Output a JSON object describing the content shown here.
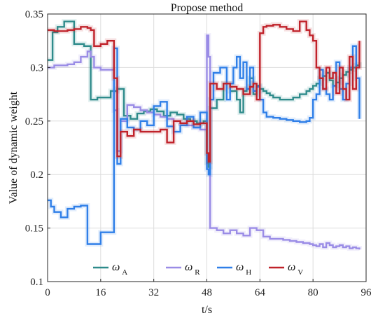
{
  "chart_data": {
    "type": "line",
    "title": "Propose method",
    "xlabel": "t/s",
    "ylabel": "Value of dynamic weight",
    "xlim": [
      0,
      96
    ],
    "ylim": [
      0.1,
      0.35
    ],
    "x_ticks": [
      "0",
      "16",
      "32",
      "48",
      "64",
      "80",
      "96"
    ],
    "y_ticks": [
      "0.1",
      "0.15",
      "0.2",
      "0.25",
      "0.3",
      "0.35"
    ],
    "grid": true,
    "legend_position": "bottom",
    "step": true,
    "series": [
      {
        "name": "ω_A",
        "color": "#2e8b8b",
        "x": [
          0,
          1.5,
          3,
          5,
          8,
          11,
          13,
          13.5,
          15,
          17,
          19,
          21,
          22,
          23,
          25,
          27,
          29,
          31,
          33,
          35,
          37,
          39,
          41,
          43,
          45,
          47,
          48,
          48.5,
          49,
          51,
          53,
          55,
          57,
          58,
          59,
          60,
          61,
          62,
          63,
          64,
          65,
          66,
          67,
          68,
          70,
          72,
          74,
          76,
          78,
          79,
          80,
          81,
          82,
          83,
          84,
          85,
          86,
          87,
          88,
          89,
          90,
          91,
          92,
          93,
          94
        ],
        "y": [
          0.307,
          0.333,
          0.338,
          0.343,
          0.322,
          0.32,
          0.27,
          0.27,
          0.272,
          0.272,
          0.278,
          0.28,
          0.28,
          0.255,
          0.252,
          0.257,
          0.259,
          0.261,
          0.259,
          0.255,
          0.258,
          0.256,
          0.252,
          0.25,
          0.248,
          0.25,
          0.211,
          0.207,
          0.262,
          0.27,
          0.285,
          0.278,
          0.27,
          0.258,
          0.278,
          0.28,
          0.29,
          0.275,
          0.283,
          0.28,
          0.278,
          0.276,
          0.274,
          0.272,
          0.27,
          0.27,
          0.272,
          0.275,
          0.278,
          0.28,
          0.283,
          0.285,
          0.29,
          0.292,
          0.295,
          0.288,
          0.283,
          0.286,
          0.29,
          0.293,
          0.296,
          0.298,
          0.3,
          0.302,
          0.305
        ]
      },
      {
        "name": "ω_R",
        "color": "#9a8ce6",
        "x": [
          0,
          2,
          4,
          6,
          8,
          10,
          12,
          13,
          14,
          16,
          18,
          20,
          21,
          22,
          24,
          26,
          28,
          30,
          32,
          34,
          36,
          38,
          40,
          42,
          44,
          46,
          48,
          48.5,
          49,
          51,
          53,
          55,
          57,
          59,
          61,
          63,
          65,
          67,
          69,
          71,
          73,
          75,
          77,
          79,
          80,
          81,
          82,
          83,
          84,
          85,
          86,
          87,
          88,
          89,
          90,
          91,
          92,
          93,
          94
        ],
        "y": [
          0.3,
          0.302,
          0.302,
          0.303,
          0.305,
          0.31,
          0.315,
          0.31,
          0.3,
          0.298,
          0.298,
          0.26,
          0.222,
          0.25,
          0.265,
          0.263,
          0.26,
          0.258,
          0.256,
          0.254,
          0.252,
          0.25,
          0.248,
          0.246,
          0.244,
          0.242,
          0.33,
          0.31,
          0.15,
          0.148,
          0.145,
          0.148,
          0.145,
          0.143,
          0.15,
          0.148,
          0.142,
          0.14,
          0.14,
          0.139,
          0.138,
          0.137,
          0.136,
          0.135,
          0.134,
          0.133,
          0.135,
          0.132,
          0.136,
          0.134,
          0.132,
          0.133,
          0.134,
          0.132,
          0.133,
          0.131,
          0.132,
          0.131,
          0.13
        ]
      },
      {
        "name": "ω_H",
        "color": "#2f7fe8",
        "x": [
          0,
          1,
          2,
          4,
          6,
          8,
          10,
          12,
          13.5,
          14,
          16,
          18,
          20,
          21,
          22,
          24,
          26,
          28,
          30,
          32,
          34,
          36,
          38,
          40,
          42,
          44,
          46,
          48,
          48.5,
          49,
          50,
          52,
          53,
          54,
          55,
          56,
          57,
          58,
          59,
          60,
          61,
          62,
          63,
          64,
          65,
          66,
          68,
          70,
          72,
          74,
          76,
          78,
          79,
          80,
          81,
          82,
          83,
          84,
          85,
          86,
          87,
          88,
          89,
          90,
          91,
          92,
          93,
          94
        ],
        "y": [
          0.176,
          0.17,
          0.165,
          0.16,
          0.168,
          0.17,
          0.171,
          0.135,
          0.135,
          0.135,
          0.146,
          0.146,
          0.318,
          0.21,
          0.252,
          0.244,
          0.242,
          0.25,
          0.246,
          0.264,
          0.268,
          0.245,
          0.24,
          0.246,
          0.254,
          0.244,
          0.258,
          0.205,
          0.2,
          0.27,
          0.295,
          0.3,
          0.3,
          0.27,
          0.285,
          0.3,
          0.31,
          0.29,
          0.305,
          0.28,
          0.3,
          0.278,
          0.282,
          0.27,
          0.258,
          0.254,
          0.253,
          0.252,
          0.251,
          0.25,
          0.249,
          0.25,
          0.253,
          0.27,
          0.275,
          0.298,
          0.28,
          0.275,
          0.27,
          0.283,
          0.305,
          0.28,
          0.27,
          0.285,
          0.3,
          0.32,
          0.29,
          0.252
        ]
      },
      {
        "name": "ω_V",
        "color": "#c0222a",
        "x": [
          0,
          2,
          4,
          6,
          8,
          10,
          12,
          13,
          14,
          16,
          18,
          20,
          21,
          22,
          24,
          26,
          28,
          30,
          32,
          34,
          36,
          38,
          40,
          42,
          44,
          46,
          48,
          48.5,
          49,
          51,
          53,
          55,
          57,
          59,
          61,
          62,
          63,
          64,
          65,
          66,
          68,
          70,
          72,
          74,
          76,
          78,
          79,
          80,
          81,
          82,
          83,
          84,
          85,
          86,
          87,
          88,
          89,
          90,
          91,
          92,
          93,
          94
        ],
        "y": [
          0.335,
          0.334,
          0.334,
          0.335,
          0.336,
          0.338,
          0.337,
          0.335,
          0.32,
          0.322,
          0.325,
          0.29,
          0.217,
          0.24,
          0.236,
          0.242,
          0.24,
          0.24,
          0.24,
          0.242,
          0.23,
          0.25,
          0.248,
          0.25,
          0.247,
          0.248,
          0.22,
          0.212,
          0.285,
          0.28,
          0.285,
          0.282,
          0.28,
          0.275,
          0.282,
          0.285,
          0.27,
          0.332,
          0.338,
          0.339,
          0.34,
          0.338,
          0.336,
          0.334,
          0.343,
          0.335,
          0.33,
          0.325,
          0.3,
          0.29,
          0.28,
          0.3,
          0.29,
          0.295,
          0.276,
          0.3,
          0.28,
          0.27,
          0.31,
          0.28,
          0.3,
          0.325
        ]
      }
    ]
  }
}
